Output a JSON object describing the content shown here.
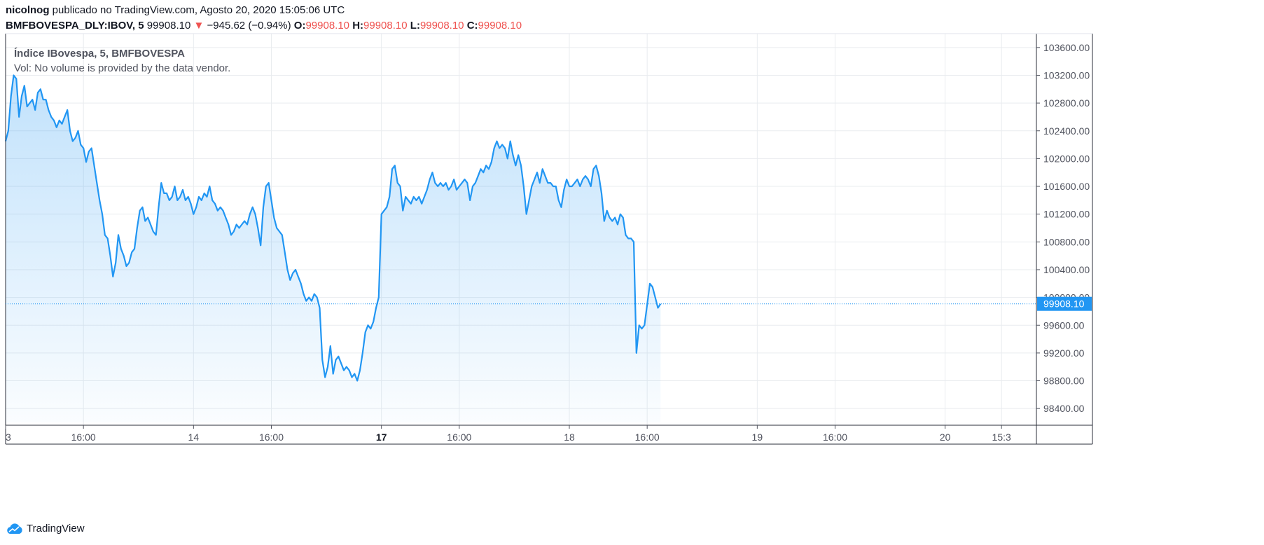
{
  "header": {
    "publisher": "nicolnog",
    "published_text": "publicado no TradingView.com, Agosto 20, 2020 15:05:06 UTC",
    "symbol": "BMFBOVESPA_DLY:IBOV, 5",
    "last": "99908.10",
    "change_arrow": "▼",
    "change": "−945.62 (−0.94%)",
    "o_label": "O:",
    "o_value": "99908.10",
    "h_label": "H:",
    "h_value": "99908.10",
    "l_label": "L:",
    "l_value": "99908.10",
    "c_label": "C:",
    "c_value": "99908.10"
  },
  "legend": {
    "title": "Índice IBovespa, 5, BMFBOVESPA",
    "volume_note": "Vol: No volume is provided by the data vendor."
  },
  "brand": {
    "name": "TradingView",
    "logo_icon": "tradingview-cloud-icon"
  },
  "colors": {
    "line": "#2196f3",
    "down": "#ef5350",
    "grid": "#e9ecef",
    "axis": "#50535e"
  },
  "chart_data": {
    "type": "area",
    "title": "Índice IBovespa, 5, BMFBOVESPA",
    "last_price_label": "99908.10",
    "last_price": 99908.1,
    "ylim": [
      98200,
      103800
    ],
    "y_ticks": [
      98400,
      98800,
      99200,
      99600,
      100000,
      100400,
      100800,
      101200,
      101600,
      102000,
      102400,
      102800,
      103200,
      103600
    ],
    "y_tick_labels": [
      "98400.00",
      "98800.00",
      "99200.00",
      "99600.00",
      "100000.00",
      "100400.00",
      "100800.00",
      "101200.00",
      "101600.00",
      "102000.00",
      "102400.00",
      "102800.00",
      "103200.00",
      "103600.00"
    ],
    "x_ticks": [
      {
        "label": "3",
        "x": 0
      },
      {
        "label": "16:00",
        "x": 29
      },
      {
        "label": "14",
        "x": 70
      },
      {
        "label": "16:00",
        "x": 99
      },
      {
        "label": "17",
        "x": 140,
        "bold": true
      },
      {
        "label": "16:00",
        "x": 169
      },
      {
        "label": "18",
        "x": 210
      },
      {
        "label": "16:00",
        "x": 239
      },
      {
        "label": "19",
        "x": 280
      },
      {
        "label": "16:00",
        "x": 309
      },
      {
        "label": "20",
        "x": 350
      },
      {
        "label": "15:3",
        "x": 371
      }
    ],
    "grid": true,
    "series": [
      {
        "values": [
          [
            0,
            102250
          ],
          [
            1,
            102400
          ],
          [
            2,
            102900
          ],
          [
            3,
            103200
          ],
          [
            4,
            103150
          ],
          [
            5,
            102600
          ],
          [
            6,
            102900
          ],
          [
            7,
            103050
          ],
          [
            8,
            102750
          ],
          [
            9,
            102800
          ],
          [
            10,
            102850
          ],
          [
            11,
            102700
          ],
          [
            12,
            102950
          ],
          [
            13,
            103000
          ],
          [
            14,
            102850
          ],
          [
            15,
            102850
          ],
          [
            16,
            102700
          ],
          [
            17,
            102600
          ],
          [
            18,
            102550
          ],
          [
            19,
            102450
          ],
          [
            20,
            102550
          ],
          [
            21,
            102500
          ],
          [
            22,
            102600
          ],
          [
            23,
            102700
          ],
          [
            24,
            102400
          ],
          [
            25,
            102250
          ],
          [
            26,
            102300
          ],
          [
            27,
            102400
          ],
          [
            28,
            102200
          ],
          [
            29,
            102150
          ],
          [
            30,
            101950
          ],
          [
            31,
            102100
          ],
          [
            32,
            102150
          ],
          [
            33,
            101900
          ],
          [
            34,
            101650
          ],
          [
            35,
            101400
          ],
          [
            36,
            101200
          ],
          [
            37,
            100900
          ],
          [
            38,
            100850
          ],
          [
            39,
            100600
          ],
          [
            40,
            100300
          ],
          [
            41,
            100500
          ],
          [
            42,
            100900
          ],
          [
            43,
            100700
          ],
          [
            44,
            100600
          ],
          [
            45,
            100450
          ],
          [
            46,
            100500
          ],
          [
            47,
            100650
          ],
          [
            48,
            100700
          ],
          [
            49,
            101000
          ],
          [
            50,
            101250
          ],
          [
            51,
            101300
          ],
          [
            52,
            101100
          ],
          [
            53,
            101150
          ],
          [
            54,
            101050
          ],
          [
            55,
            100950
          ],
          [
            56,
            100900
          ],
          [
            57,
            101300
          ],
          [
            58,
            101650
          ],
          [
            59,
            101500
          ],
          [
            60,
            101500
          ],
          [
            61,
            101400
          ],
          [
            62,
            101450
          ],
          [
            63,
            101600
          ],
          [
            64,
            101400
          ],
          [
            65,
            101450
          ],
          [
            66,
            101550
          ],
          [
            67,
            101400
          ],
          [
            68,
            101450
          ],
          [
            69,
            101350
          ],
          [
            70,
            101200
          ],
          [
            71,
            101300
          ],
          [
            72,
            101450
          ],
          [
            73,
            101400
          ],
          [
            74,
            101500
          ],
          [
            75,
            101450
          ],
          [
            76,
            101600
          ],
          [
            77,
            101400
          ],
          [
            78,
            101350
          ],
          [
            79,
            101250
          ],
          [
            80,
            101300
          ],
          [
            81,
            101250
          ],
          [
            82,
            101150
          ],
          [
            83,
            101050
          ],
          [
            84,
            100900
          ],
          [
            85,
            100950
          ],
          [
            86,
            101050
          ],
          [
            87,
            101000
          ],
          [
            88,
            101050
          ],
          [
            89,
            101100
          ],
          [
            90,
            101050
          ],
          [
            91,
            101200
          ],
          [
            92,
            101300
          ],
          [
            93,
            101200
          ],
          [
            94,
            101000
          ],
          [
            95,
            100750
          ],
          [
            96,
            101300
          ],
          [
            97,
            101600
          ],
          [
            98,
            101650
          ],
          [
            99,
            101400
          ],
          [
            100,
            101150
          ],
          [
            101,
            101000
          ],
          [
            102,
            100950
          ],
          [
            103,
            100900
          ],
          [
            104,
            100650
          ],
          [
            105,
            100400
          ],
          [
            106,
            100250
          ],
          [
            107,
            100350
          ],
          [
            108,
            100400
          ],
          [
            109,
            100300
          ],
          [
            110,
            100200
          ],
          [
            111,
            100050
          ],
          [
            112,
            99950
          ],
          [
            113,
            100000
          ],
          [
            114,
            99950
          ],
          [
            115,
            100050
          ],
          [
            116,
            100000
          ],
          [
            117,
            99850
          ],
          [
            118,
            99100
          ],
          [
            119,
            98850
          ],
          [
            120,
            99000
          ],
          [
            121,
            99300
          ],
          [
            122,
            98900
          ],
          [
            123,
            99100
          ],
          [
            124,
            99150
          ],
          [
            125,
            99050
          ],
          [
            126,
            98950
          ],
          [
            127,
            99000
          ],
          [
            128,
            98950
          ],
          [
            129,
            98850
          ],
          [
            130,
            98900
          ],
          [
            131,
            98800
          ],
          [
            132,
            98950
          ],
          [
            133,
            99200
          ],
          [
            134,
            99500
          ],
          [
            135,
            99600
          ],
          [
            136,
            99550
          ],
          [
            137,
            99650
          ],
          [
            138,
            99850
          ],
          [
            139,
            100000
          ],
          [
            140,
            101200
          ],
          [
            141,
            101250
          ],
          [
            142,
            101300
          ],
          [
            143,
            101450
          ],
          [
            144,
            101850
          ],
          [
            145,
            101900
          ],
          [
            146,
            101650
          ],
          [
            147,
            101600
          ],
          [
            148,
            101250
          ],
          [
            149,
            101450
          ],
          [
            150,
            101400
          ],
          [
            151,
            101350
          ],
          [
            152,
            101450
          ],
          [
            153,
            101400
          ],
          [
            154,
            101450
          ],
          [
            155,
            101350
          ],
          [
            156,
            101450
          ],
          [
            157,
            101550
          ],
          [
            158,
            101700
          ],
          [
            159,
            101800
          ],
          [
            160,
            101650
          ],
          [
            161,
            101600
          ],
          [
            162,
            101650
          ],
          [
            163,
            101600
          ],
          [
            164,
            101650
          ],
          [
            165,
            101550
          ],
          [
            166,
            101600
          ],
          [
            167,
            101700
          ],
          [
            168,
            101550
          ],
          [
            169,
            101600
          ],
          [
            170,
            101650
          ],
          [
            171,
            101700
          ],
          [
            172,
            101650
          ],
          [
            173,
            101400
          ],
          [
            174,
            101600
          ],
          [
            175,
            101650
          ],
          [
            176,
            101750
          ],
          [
            177,
            101850
          ],
          [
            178,
            101800
          ],
          [
            179,
            101900
          ],
          [
            180,
            101850
          ],
          [
            181,
            101950
          ],
          [
            182,
            102150
          ],
          [
            183,
            102250
          ],
          [
            184,
            102150
          ],
          [
            185,
            102200
          ],
          [
            186,
            102150
          ],
          [
            187,
            102000
          ],
          [
            188,
            102250
          ],
          [
            189,
            102050
          ],
          [
            190,
            101900
          ],
          [
            191,
            102050
          ],
          [
            192,
            101900
          ],
          [
            193,
            101600
          ],
          [
            194,
            101200
          ],
          [
            195,
            101400
          ],
          [
            196,
            101600
          ],
          [
            197,
            101700
          ],
          [
            198,
            101800
          ],
          [
            199,
            101650
          ],
          [
            200,
            101850
          ],
          [
            201,
            101750
          ],
          [
            202,
            101650
          ],
          [
            203,
            101650
          ],
          [
            204,
            101600
          ],
          [
            205,
            101600
          ],
          [
            206,
            101400
          ],
          [
            207,
            101300
          ],
          [
            208,
            101550
          ],
          [
            209,
            101700
          ],
          [
            210,
            101600
          ],
          [
            211,
            101600
          ],
          [
            212,
            101650
          ],
          [
            213,
            101700
          ],
          [
            214,
            101600
          ],
          [
            215,
            101700
          ],
          [
            216,
            101750
          ],
          [
            217,
            101700
          ],
          [
            218,
            101600
          ],
          [
            219,
            101850
          ],
          [
            220,
            101900
          ],
          [
            221,
            101750
          ],
          [
            222,
            101500
          ],
          [
            223,
            101100
          ],
          [
            224,
            101250
          ],
          [
            225,
            101150
          ],
          [
            226,
            101100
          ],
          [
            227,
            101150
          ],
          [
            228,
            101050
          ],
          [
            229,
            101200
          ],
          [
            230,
            101150
          ],
          [
            231,
            100900
          ],
          [
            232,
            100850
          ],
          [
            233,
            100850
          ],
          [
            234,
            100800
          ],
          [
            235,
            99200
          ],
          [
            236,
            99600
          ],
          [
            237,
            99550
          ],
          [
            238,
            99600
          ],
          [
            239,
            99900
          ],
          [
            240,
            100200
          ],
          [
            241,
            100150
          ],
          [
            242,
            100000
          ],
          [
            243,
            99850
          ],
          [
            244,
            99908
          ]
        ]
      }
    ]
  }
}
